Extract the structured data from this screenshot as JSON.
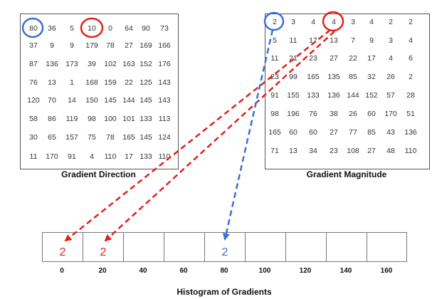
{
  "gradient_direction": {
    "caption": "Gradient Direction",
    "rows": [
      [
        "80",
        "36",
        "5",
        "10",
        "0",
        "64",
        "90",
        "73"
      ],
      [
        "37",
        "9",
        "9",
        "179",
        "78",
        "27",
        "169",
        "166"
      ],
      [
        "87",
        "136",
        "173",
        "39",
        "102",
        "163",
        "152",
        "176"
      ],
      [
        "76",
        "13",
        "1",
        "168",
        "159",
        "22",
        "125",
        "143"
      ],
      [
        "120",
        "70",
        "14",
        "150",
        "145",
        "144",
        "145",
        "143"
      ],
      [
        "58",
        "86",
        "119",
        "98",
        "100",
        "101",
        "133",
        "113"
      ],
      [
        "30",
        "65",
        "157",
        "75",
        "78",
        "165",
        "145",
        "124"
      ],
      [
        "11",
        "170",
        "91",
        "4",
        "110",
        "17",
        "133",
        "110"
      ]
    ]
  },
  "gradient_magnitude": {
    "caption": "Gradient Magnitude",
    "rows": [
      [
        "2",
        "3",
        "4",
        "4",
        "3",
        "4",
        "2",
        "2"
      ],
      [
        "5",
        "11",
        "17",
        "13",
        "7",
        "9",
        "3",
        "4"
      ],
      [
        "11",
        "21",
        "23",
        "27",
        "22",
        "17",
        "4",
        "6"
      ],
      [
        "23",
        "99",
        "165",
        "135",
        "85",
        "32",
        "26",
        "2"
      ],
      [
        "91",
        "155",
        "133",
        "136",
        "144",
        "152",
        "57",
        "28"
      ],
      [
        "98",
        "196",
        "76",
        "38",
        "26",
        "60",
        "170",
        "51"
      ],
      [
        "165",
        "60",
        "60",
        "27",
        "77",
        "85",
        "43",
        "136"
      ],
      [
        "71",
        "13",
        "34",
        "23",
        "108",
        "27",
        "48",
        "110"
      ]
    ]
  },
  "histogram": {
    "title": "Histogram of Gradients",
    "bins": [
      {
        "label": "0",
        "value": "2",
        "color": "#e0211b"
      },
      {
        "label": "20",
        "value": "2",
        "color": "#e0211b"
      },
      {
        "label": "40",
        "value": ""
      },
      {
        "label": "60",
        "value": ""
      },
      {
        "label": "80",
        "value": "2",
        "color": "#3a6fd8"
      },
      {
        "label": "100",
        "value": ""
      },
      {
        "label": "120",
        "value": ""
      },
      {
        "label": "140",
        "value": ""
      },
      {
        "label": "160",
        "value": ""
      }
    ]
  },
  "colors": {
    "red": "#e0211b",
    "blue": "#3a6fd8"
  }
}
